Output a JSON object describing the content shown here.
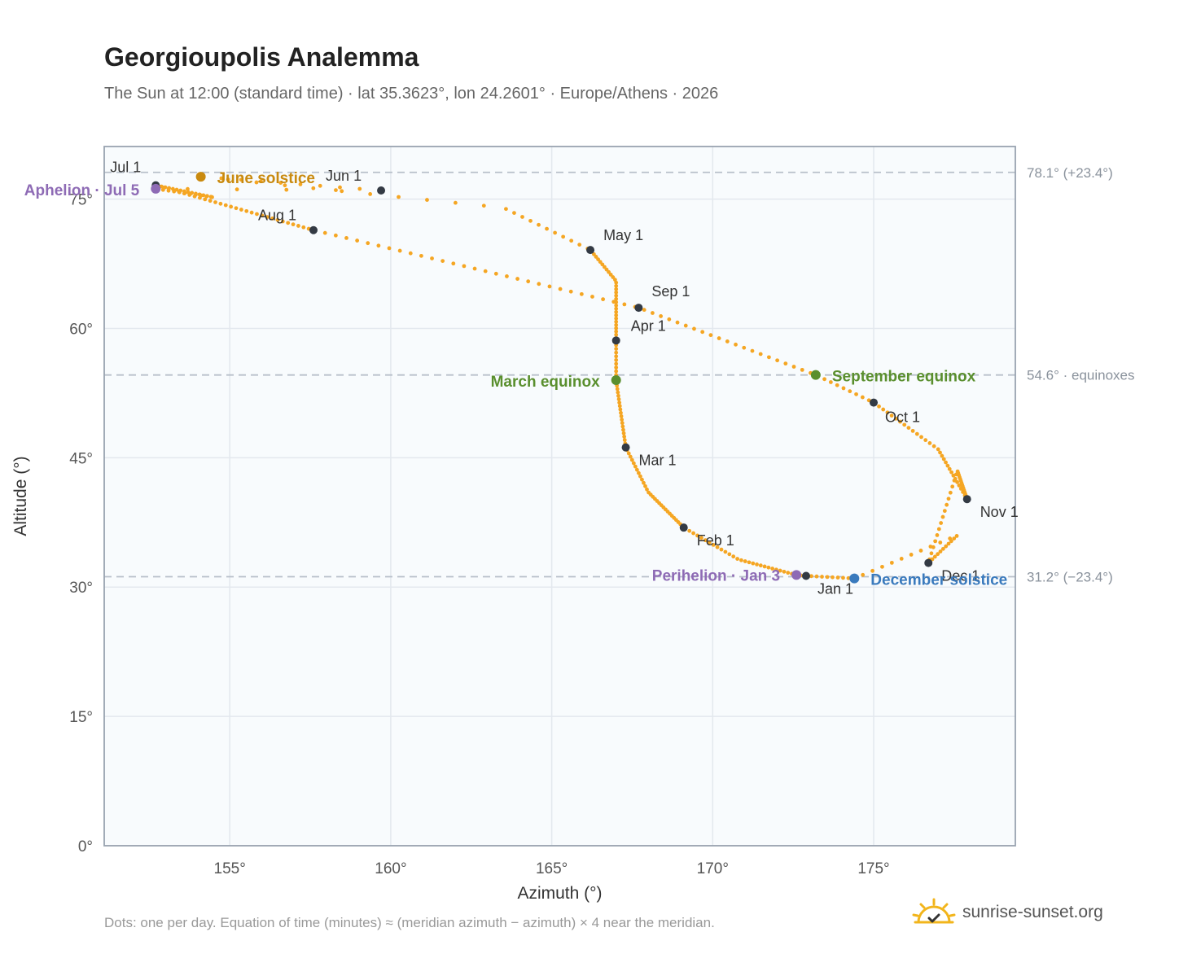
{
  "header": {
    "title": "Georgioupolis Analemma",
    "subtitle": "The Sun at 12:00 (standard time) · lat 35.3623°, lon 24.2601° · Europe/Athens · 2026"
  },
  "footer": {
    "note": "Dots: one per day. Equation of time (minutes) ≈ (meridian azimuth − azimuth) × 4 near the meridian.",
    "brand": "sunrise-sunset.org"
  },
  "colors": {
    "curve": "#f5a623",
    "month_dot": "#333a44",
    "equinox": "#5a8f2e",
    "june_solstice": "#c98a0f",
    "december_solstice": "#3a7abd",
    "apsis": "#8e6bb5",
    "plot_bg": "#f8fbfd",
    "grid": "#e3e8ee",
    "ref_line": "#b8c0ca",
    "axis": "#99a3b0"
  },
  "chart_data": {
    "type": "scatter",
    "xlabel": "Azimuth (°)",
    "ylabel": "Altitude (°)",
    "xlim": [
      151.1,
      179.4
    ],
    "ylim": [
      0,
      81.1
    ],
    "x_ticks": [
      "155°",
      "160°",
      "165°",
      "170°",
      "175°"
    ],
    "x_tick_values": [
      155,
      160,
      165,
      170,
      175
    ],
    "y_ticks": [
      "0°",
      "15°",
      "30°",
      "45°",
      "60°",
      "75°"
    ],
    "y_tick_values": [
      0,
      15,
      30,
      45,
      60,
      75
    ],
    "grid": true,
    "reference_lines": [
      {
        "y": 78.1,
        "label": "78.1° (+23.4°)"
      },
      {
        "y": 54.6,
        "label": "54.6° · equinoxes"
      },
      {
        "y": 31.2,
        "label": "31.2° (−23.4°)"
      }
    ],
    "month_points": [
      {
        "label": "Jan 1",
        "x": 172.9,
        "y": 31.3
      },
      {
        "label": "Feb 1",
        "x": 169.1,
        "y": 36.9
      },
      {
        "label": "Mar 1",
        "x": 167.3,
        "y": 46.2
      },
      {
        "label": "Apr 1",
        "x": 167.0,
        "y": 58.6
      },
      {
        "label": "May 1",
        "x": 166.2,
        "y": 69.1
      },
      {
        "label": "Jun 1",
        "x": 159.7,
        "y": 76.0
      },
      {
        "label": "Jul 1",
        "x": 152.7,
        "y": 76.6
      },
      {
        "label": "Aug 1",
        "x": 157.6,
        "y": 71.4
      },
      {
        "label": "Sep 1",
        "x": 167.7,
        "y": 62.4
      },
      {
        "label": "Oct 1",
        "x": 175.0,
        "y": 51.4
      },
      {
        "label": "Nov 1",
        "x": 177.9,
        "y": 40.2
      },
      {
        "label": "Dec 1",
        "x": 176.7,
        "y": 32.8
      }
    ],
    "events": [
      {
        "label": "March equinox",
        "x": 167.0,
        "y": 54.0,
        "color": "equinox"
      },
      {
        "label": "June solstice",
        "x": 154.1,
        "y": 77.6,
        "color": "june_solstice"
      },
      {
        "label": "September equinox",
        "x": 173.2,
        "y": 54.6,
        "color": "equinox"
      },
      {
        "label": "December solstice",
        "x": 174.4,
        "y": 31.0,
        "color": "december_solstice"
      },
      {
        "label": "Perihelion · Jan 3",
        "x": 172.6,
        "y": 31.4,
        "color": "apsis"
      },
      {
        "label": "Aphelion · Jul 5",
        "x": 152.7,
        "y": 76.2,
        "color": "apsis"
      }
    ]
  }
}
